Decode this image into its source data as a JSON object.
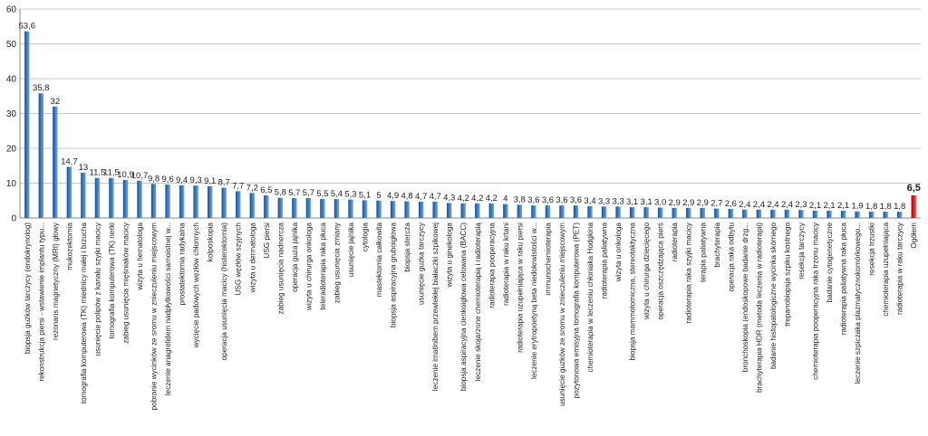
{
  "chart_data": {
    "type": "bar",
    "ylim": [
      0,
      60
    ],
    "yticks": [
      0,
      10,
      20,
      30,
      40,
      50,
      60
    ],
    "grid": true,
    "colors": {
      "bar": "#3a78c4",
      "highlight": "#e0161b",
      "grid": "#c8c8c8",
      "axis": "#888888"
    },
    "categories": [
      "biopsja guzków tarczycy (endokrynolog)",
      "rekonstrukcja piersi - wstawienie implantu typu...",
      "rezonans magnetyczny (MRI) głowy",
      "mukozektomia",
      "tomografia komputerowa (TK) miednicy małej i brzucha",
      "usunięcie polipów z kanału szyjki macicy",
      "tomografia komputerowa (TK) nerki",
      "zabieg usunięcia mięśniaków macicy",
      "wizyta u hematologa",
      "pobranie wycinków ze sromu w znieczuleniu miejscowym",
      "leczenie anagrelidem nadpłytkowości samoistnej w...",
      "prostatektomia radykalna",
      "wycięcie padowych węzłów chłonnych",
      "kolposkopia",
      "operacja usunięcia macicy (histerektomia)",
      "USG węzłów szyjnych",
      "wizyta u dermatologa",
      "USG piersi",
      "zabieg usunięcia nadnercza",
      "operacja guza jajnika",
      "wizyta u chirurga onkologa",
      "teleradioterapia raka płuca",
      "zabieg usunięcia zmiany",
      "usunięcie jajnika",
      "cytologia",
      "mastektomia całkowita",
      "biopsja aspiracyjna gruboigłowa",
      "biopsja stercza",
      "usunięcie guzka tarczycy",
      "leczenie imatinibem przewlekłej białaczki szpikowej",
      "wizyta u ginekologa",
      "biopsja aspiracyjna cienkoigłowa celowana (BACC)",
      "leczenie skojarzone chemioterapią i radioterapią",
      "radioterapia pooperacyjna",
      "radioterapia w raku krtani",
      "radioterapia uzupełniająca w raku piersi",
      "leczenie erytropoetyną beta niedokrwistości w...",
      "immunochemioterapia",
      "usunięcie guzków ze sromu w znieczuleniu miejscowym",
      "pozytonowa emisyjna tomografia komputerowa (PET)",
      "chemioterapia w leczeniu chłoniaka Hodgkina",
      "radioterapia paliatywna",
      "wizyta u onkologa",
      "biopsja mammotomiczna, stereotaktyczna",
      "wizyta u chirurga dziecięcego",
      "operacja oszczędzająca pierś",
      "radioterapia",
      "radioterapia raka szyjki macicy",
      "terapia paliatywna",
      "brachyterapia",
      "operacja raka odbytu",
      "bronchoskopia (endoskopowe badanie drzg...",
      "brachyterapia HDR (metoda leczenia w radioterapii)",
      "badanie histopatologiczne wycinka skórnego",
      "trepanobiopsja szpiku kostnego",
      "resekcja tarczycy",
      "chemioterapia pooperacyjna raka trzonu macicy",
      "badanie cytogenetyczne",
      "radioterapia paliatywna raka płuca",
      "leczenie szpiczaka plazmatycznokomórkowego...",
      "resekcja trzustki",
      "chemioterapia uzupełniająca",
      "radioterapia w raku tarczycy",
      "Ogółem"
    ],
    "values": [
      53.6,
      35.8,
      32,
      14.7,
      13,
      11.5,
      11.5,
      10.9,
      10.7,
      9.8,
      9.6,
      9.4,
      9.3,
      9.1,
      8.7,
      7.7,
      7.2,
      6.5,
      5.8,
      5.7,
      5.7,
      5.5,
      5.4,
      5.3,
      5.1,
      5,
      4.9,
      4.8,
      4.7,
      4.7,
      4.3,
      4.2,
      4.2,
      4.2,
      4,
      3.8,
      3.6,
      3.6,
      3.6,
      3.6,
      3.4,
      3.3,
      3.3,
      3.1,
      3.1,
      3.0,
      2.9,
      2.9,
      2.9,
      2.7,
      2.6,
      2.4,
      2.4,
      2.4,
      2.4,
      2.3,
      2.1,
      2.1,
      2.1,
      1.9,
      1.8,
      1.8,
      1.8,
      6.5
    ],
    "value_labels": [
      "53,6",
      "35,8",
      "32",
      "14,7",
      "13",
      "11,5",
      "11,5",
      "10,9",
      "10,7",
      "9,8",
      "9,6",
      "9,4",
      "9,3",
      "9,1",
      "8,7",
      "7,7",
      "7,2",
      "6,5",
      "5,8",
      "5,7",
      "5,7",
      "5,5",
      "5,4",
      "5,3",
      "5,1",
      "5",
      "4,9",
      "4,8",
      "4,7",
      "4,7",
      "4,3",
      "4,2",
      "4,2",
      "4,2",
      "4",
      "3,8",
      "3,6",
      "3,6",
      "3,6",
      "3,6",
      "3,4",
      "3,3",
      "3,3",
      "3,1",
      "3,1",
      "3,0",
      "2,9",
      "2,9",
      "2,9",
      "2,7",
      "2,6",
      "2,4",
      "2,4",
      "2,4",
      "2,4",
      "2,3",
      "2,1",
      "2,1",
      "2,1",
      "1,9",
      "1,8",
      "1,8",
      "1,8",
      "6,5"
    ],
    "highlight_index": 63
  }
}
